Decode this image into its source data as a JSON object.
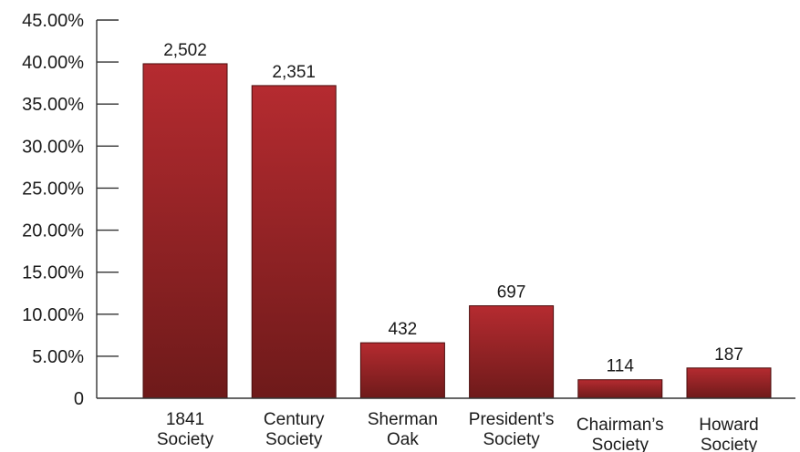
{
  "chart_data": {
    "type": "bar",
    "title": "",
    "xlabel": "",
    "ylabel": "",
    "categories": [
      [
        "1841",
        "Society"
      ],
      [
        "Century",
        "Society"
      ],
      [
        "Sherman",
        "Oak"
      ],
      [
        "President’s",
        "Society"
      ],
      [
        "Chairman’s",
        "Society"
      ],
      [
        "Howard",
        "Society"
      ]
    ],
    "values": [
      39.8,
      37.2,
      6.6,
      11.0,
      2.2,
      3.6
    ],
    "data_labels": [
      "2,502",
      "2,351",
      "432",
      "697",
      "114",
      "187"
    ],
    "ylim": [
      0,
      45
    ],
    "yticks": [
      0,
      5,
      10,
      15,
      20,
      25,
      30,
      35,
      40,
      45
    ],
    "ytick_labels": [
      "0",
      "5.00%",
      "10.00%",
      "15.00%",
      "20.00%",
      "25.00%",
      "30.00%",
      "35.00%",
      "40.00%",
      "45.00%"
    ],
    "grid": false,
    "legend": "none",
    "colors": {
      "bar_top": "#b52b30",
      "bar_bottom": "#6e1a1a",
      "axis": "#333333"
    }
  }
}
